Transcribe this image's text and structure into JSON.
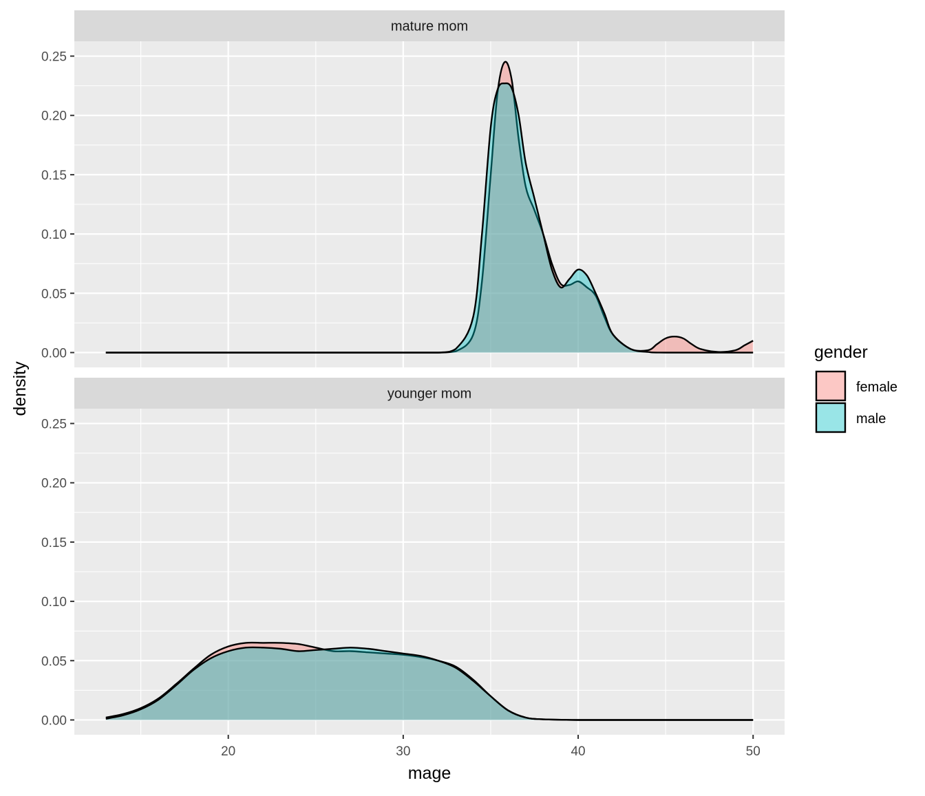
{
  "chart_data": {
    "type": "area",
    "subtype": "density",
    "xlabel": "mage",
    "ylabel": "density",
    "xlim": [
      11.2,
      51.8
    ],
    "ylim": [
      -0.0125,
      0.2625
    ],
    "x_ticks": [
      20,
      30,
      40,
      50
    ],
    "y_ticks": [
      0.0,
      0.05,
      0.1,
      0.15,
      0.2,
      0.25
    ],
    "x_tick_labels": [
      "20",
      "30",
      "40",
      "50"
    ],
    "y_tick_labels": [
      "0.00",
      "0.05",
      "0.10",
      "0.15",
      "0.20",
      "0.25"
    ],
    "grid": true,
    "legend": {
      "title": "gender",
      "position": "right",
      "entries": [
        {
          "label": "female",
          "color": "#F8766D"
        },
        {
          "label": "male",
          "color": "#00BFC4"
        }
      ]
    },
    "colors": {
      "female": "#F8766D",
      "male": "#00BFC4",
      "panel_bg": "#EBEBEB",
      "strip_bg": "#D9D9D9",
      "grid": "#FFFFFF",
      "outline": "#000000"
    },
    "fill_alpha": 0.4,
    "panels": [
      {
        "label": "mature mom",
        "series": [
          {
            "name": "female",
            "x": [
              13,
              30,
              32,
              33,
              34,
              34.5,
              35,
              35.4,
              35.8,
              36.2,
              36.6,
              37,
              37.5,
              38,
              38.5,
              39,
              39.5,
              40,
              40.5,
              41,
              41.5,
              42,
              43,
              44,
              44.5,
              45,
              45.5,
              46,
              46.5,
              47,
              48,
              49,
              49.5,
              50
            ],
            "y": [
              0,
              0,
              0,
              0.001,
              0.015,
              0.06,
              0.15,
              0.22,
              0.245,
              0.23,
              0.18,
              0.14,
              0.12,
              0.1,
              0.075,
              0.058,
              0.057,
              0.06,
              0.055,
              0.048,
              0.03,
              0.015,
              0.003,
              0.002,
              0.007,
              0.012,
              0.0135,
              0.012,
              0.007,
              0.003,
              0.0005,
              0.002,
              0.006,
              0.01
            ]
          },
          {
            "name": "male",
            "x": [
              13,
              30,
              32,
              33,
              34,
              34.5,
              35,
              35.4,
              35.8,
              36.2,
              36.6,
              37,
              37.5,
              38,
              38.5,
              39,
              39.5,
              40,
              40.5,
              41,
              41.5,
              42,
              43,
              44,
              45,
              50
            ],
            "y": [
              0,
              0,
              0,
              0.003,
              0.03,
              0.1,
              0.19,
              0.222,
              0.227,
              0.223,
              0.2,
              0.16,
              0.13,
              0.1,
              0.07,
              0.055,
              0.062,
              0.07,
              0.065,
              0.05,
              0.033,
              0.015,
              0.003,
              0.0005,
              0,
              0
            ]
          }
        ]
      },
      {
        "label": "younger mom",
        "series": [
          {
            "name": "female",
            "x": [
              13,
              14,
              15,
              16,
              17,
              18,
              19,
              20,
              21,
              22,
              23,
              24,
              25,
              26,
              27,
              28,
              29,
              30,
              31,
              32,
              33,
              34,
              35,
              36,
              37,
              38,
              40,
              45,
              50
            ],
            "y": [
              0.002,
              0.005,
              0.01,
              0.018,
              0.03,
              0.043,
              0.055,
              0.062,
              0.065,
              0.065,
              0.065,
              0.064,
              0.061,
              0.058,
              0.058,
              0.057,
              0.056,
              0.055,
              0.053,
              0.05,
              0.045,
              0.034,
              0.02,
              0.008,
              0.002,
              0.0005,
              0,
              0,
              0
            ]
          },
          {
            "name": "male",
            "x": [
              13,
              14,
              15,
              16,
              17,
              18,
              19,
              20,
              21,
              22,
              23,
              24,
              25,
              26,
              27,
              28,
              29,
              30,
              31,
              32,
              33,
              34,
              35,
              36,
              37,
              38,
              40,
              45,
              50
            ],
            "y": [
              0.001,
              0.004,
              0.009,
              0.017,
              0.029,
              0.042,
              0.052,
              0.058,
              0.061,
              0.061,
              0.06,
              0.058,
              0.059,
              0.06,
              0.061,
              0.06,
              0.058,
              0.056,
              0.054,
              0.05,
              0.044,
              0.033,
              0.02,
              0.008,
              0.002,
              0.0005,
              0,
              0,
              0
            ]
          }
        ]
      }
    ]
  }
}
